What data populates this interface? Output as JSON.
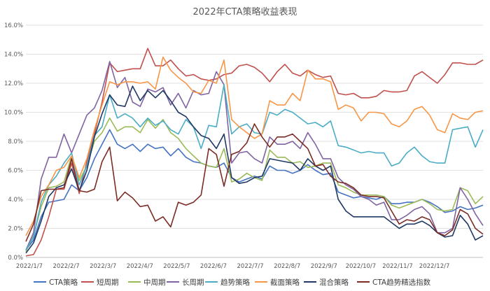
{
  "chart_data": {
    "type": "line",
    "title": "2022年CTA策略收益表现",
    "xlabel": "",
    "ylabel": "",
    "ylim": [
      0,
      16
    ],
    "y_ticks": [
      "0.0%",
      "2.0%",
      "4.0%",
      "6.0%",
      "8.0%",
      "10.0%",
      "12.0%",
      "14.0%",
      "16.0%"
    ],
    "x_ticks": [
      "2022/1/7",
      "2022/2/7",
      "2022/3/7",
      "2022/4/7",
      "2022/5/7",
      "2022/6/7",
      "2022/7/7",
      "2022/8/7",
      "2022/9/7",
      "2022/10/7",
      "2022/11/7",
      "2022/12/7"
    ],
    "grid": true,
    "legend": "bottom",
    "series": [
      {
        "name": "CTA策略",
        "color": "#4472C4",
        "values": [
          0.5,
          1.2,
          2.8,
          3.8,
          3.9,
          4.0,
          5.0,
          4.6,
          5.5,
          6.8,
          7.8,
          8.8,
          7.8,
          7.5,
          7.8,
          7.3,
          7.8,
          7.5,
          7.6,
          7.0,
          7.5,
          6.9,
          6.6,
          6.5,
          6.3,
          6.2,
          6.5,
          5.5,
          5.2,
          5.4,
          5.6,
          5.4,
          6.3,
          6.0,
          6.0,
          5.8,
          6.0,
          6.4,
          6.0,
          5.7,
          5.8,
          4.5,
          4.3,
          4.1,
          4.2,
          4.1,
          4.0,
          4.2,
          3.7,
          3.7,
          3.8,
          3.8,
          4.0,
          3.8,
          3.5,
          3.1,
          3.2,
          3.5,
          3.3,
          3.4,
          3.6
        ]
      },
      {
        "name": "短周期",
        "color": "#C0504D",
        "values": [
          0.1,
          0.2,
          1.2,
          2.8,
          4.7,
          4.7,
          6.5,
          4.4,
          6.6,
          8.5,
          10.7,
          13.4,
          12.8,
          12.9,
          13.0,
          13.0,
          14.4,
          13.2,
          13.2,
          13.6,
          13.0,
          12.5,
          12.6,
          12.3,
          12.2,
          12.3,
          12.6,
          12.7,
          13.2,
          13.3,
          13.1,
          12.7,
          12.1,
          12.8,
          13.3,
          12.7,
          12.5,
          12.9,
          12.6,
          12.4,
          12.5,
          11.3,
          11.2,
          11.3,
          11.0,
          11.0,
          11.1,
          11.5,
          11.4,
          11.4,
          11.5,
          12.5,
          12.8,
          12.4,
          12.0,
          12.6,
          13.4,
          13.4,
          13.3,
          13.3,
          13.6
        ]
      },
      {
        "name": "中周期",
        "color": "#9BBB59",
        "values": [
          0.4,
          1.5,
          3.5,
          4.8,
          4.9,
          5.2,
          7.0,
          5.3,
          6.3,
          8.0,
          8.6,
          9.6,
          8.7,
          9.0,
          9.0,
          8.6,
          9.5,
          8.9,
          9.5,
          8.6,
          8.2,
          7.5,
          7.0,
          6.5,
          6.3,
          6.2,
          7.5,
          5.2,
          5.4,
          5.8,
          5.5,
          5.3,
          7.4,
          6.9,
          6.9,
          6.5,
          6.6,
          6.2,
          6.3,
          6.5,
          6.5,
          5.0,
          4.8,
          4.5,
          4.3,
          4.3,
          4.3,
          4.2,
          3.6,
          3.4,
          3.6,
          3.8,
          4.0,
          3.7,
          3.3,
          3.2,
          3.3,
          4.8,
          4.6,
          3.7,
          4.2
        ]
      },
      {
        "name": "长周期",
        "color": "#8064A2",
        "values": [
          0.5,
          1.7,
          5.4,
          6.9,
          6.9,
          8.5,
          7.2,
          8.5,
          9.8,
          10.3,
          11.5,
          13.5,
          11.7,
          12.4,
          10.7,
          10.4,
          11.6,
          11.4,
          11.7,
          10.5,
          11.3,
          10.3,
          11.5,
          11.2,
          11.3,
          12.8,
          11.9,
          6.5,
          7.2,
          7.3,
          6.8,
          6.5,
          8.3,
          7.8,
          7.8,
          8.0,
          7.5,
          8.6,
          7.8,
          6.8,
          6.8,
          5.5,
          5.0,
          4.7,
          4.2,
          4.0,
          3.6,
          3.8,
          2.6,
          2.6,
          2.9,
          3.3,
          3.5,
          3.0,
          1.7,
          1.7,
          2.0,
          4.8,
          4.0,
          3.0,
          2.2
        ]
      },
      {
        "name": "趋势策略",
        "color": "#4BACC6",
        "values": [
          0.5,
          1.4,
          3.8,
          5.0,
          5.6,
          6.5,
          7.2,
          5.0,
          6.3,
          8.4,
          9.0,
          11.2,
          9.6,
          9.9,
          9.6,
          9.0,
          9.6,
          9.1,
          9.4,
          8.8,
          8.5,
          9.5,
          9.0,
          7.5,
          9.1,
          9.0,
          11.9,
          8.5,
          9.0,
          9.2,
          8.6,
          8.5,
          10.0,
          9.8,
          10.2,
          10.0,
          9.6,
          9.2,
          9.3,
          9.0,
          9.4,
          7.7,
          7.6,
          7.4,
          7.2,
          7.3,
          7.2,
          7.2,
          6.3,
          6.5,
          7.2,
          7.6,
          7.0,
          6.6,
          6.5,
          6.5,
          8.8,
          8.9,
          9.0,
          7.6,
          8.8
        ]
      },
      {
        "name": "截面策略",
        "color": "#F79646",
        "values": [
          1.5,
          2.5,
          4.2,
          5.0,
          6.0,
          6.2,
          7.0,
          5.5,
          6.8,
          8.8,
          10.5,
          12.1,
          11.9,
          12.1,
          12.1,
          12.0,
          12.1,
          11.6,
          13.8,
          12.9,
          12.4,
          12.0,
          11.4,
          11.3,
          12.2,
          12.0,
          13.6,
          9.5,
          9.0,
          8.6,
          8.2,
          8.5,
          10.8,
          10.5,
          10.5,
          11.3,
          10.8,
          12.9,
          12.3,
          12.3,
          12.1,
          10.2,
          10.5,
          10.3,
          9.4,
          10.0,
          10.0,
          9.9,
          9.2,
          9.0,
          9.4,
          10.2,
          10.4,
          9.8,
          8.8,
          8.6,
          9.9,
          9.6,
          9.5,
          10.0,
          10.1
        ]
      },
      {
        "name": "混合策略",
        "color": "#1F3864",
        "values": [
          0.3,
          1.0,
          2.5,
          4.2,
          4.8,
          5.0,
          6.1,
          4.6,
          6.0,
          8.3,
          9.9,
          11.2,
          10.5,
          10.4,
          11.8,
          10.8,
          11.5,
          11.0,
          11.5,
          10.8,
          10.0,
          9.7,
          9.0,
          8.4,
          8.2,
          7.5,
          8.5,
          5.5,
          5.1,
          5.2,
          5.5,
          5.6,
          6.8,
          6.7,
          6.6,
          6.5,
          6.0,
          6.8,
          6.3,
          6.0,
          6.3,
          4.0,
          3.2,
          2.8,
          2.8,
          2.8,
          2.8,
          2.8,
          2.4,
          2.0,
          2.3,
          2.3,
          2.5,
          2.2,
          1.7,
          1.4,
          1.5,
          2.9,
          2.3,
          1.2,
          1.5
        ]
      },
      {
        "name": "CTA趋势精选指数",
        "color": "#7B2C25",
        "values": [
          1.1,
          2.3,
          4.6,
          4.7,
          4.7,
          4.8,
          6.8,
          4.6,
          4.5,
          4.7,
          6.6,
          7.6,
          3.9,
          4.5,
          4.1,
          3.5,
          3.6,
          2.5,
          2.8,
          2.1,
          3.8,
          3.6,
          3.8,
          4.3,
          7.5,
          7.1,
          4.9,
          7.1,
          7.3,
          7.9,
          9.2,
          8.3,
          7.6,
          8.3,
          8.3,
          8.5,
          8.0,
          7.5,
          6.3,
          6.4,
          5.6,
          5.2,
          5.1,
          4.8,
          4.3,
          4.2,
          4.2,
          4.1,
          3.2,
          2.3,
          2.6,
          2.5,
          2.8,
          2.6,
          1.7,
          1.5,
          1.9,
          3.3,
          3.0,
          2.0,
          1.6
        ]
      }
    ]
  }
}
